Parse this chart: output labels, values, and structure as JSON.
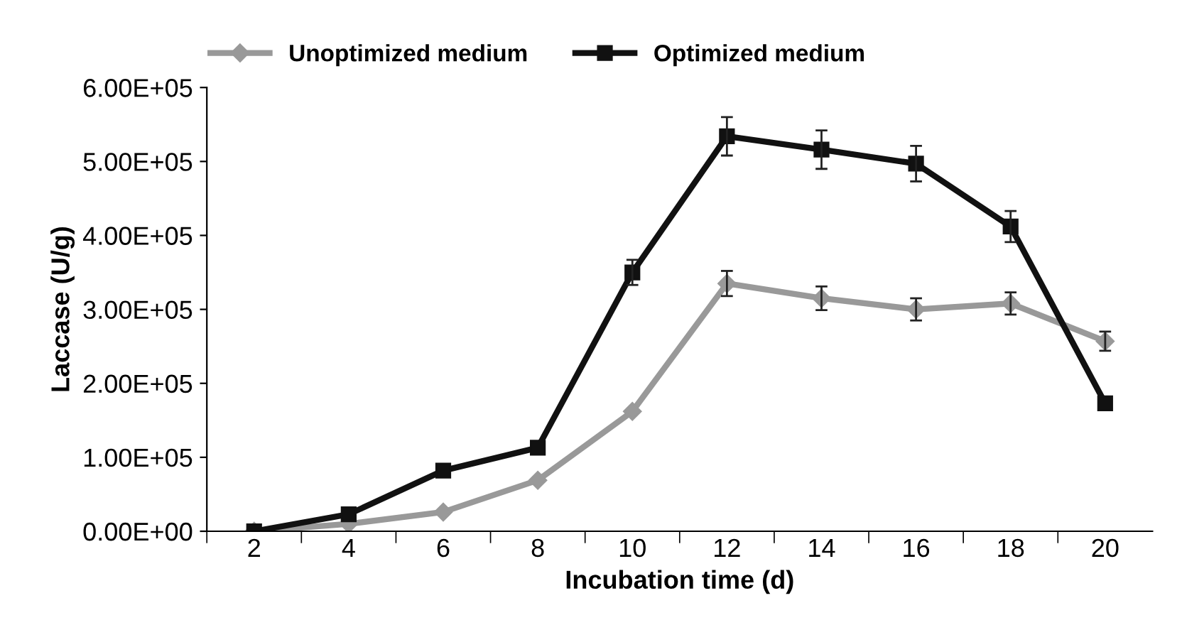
{
  "chart_data": {
    "type": "line",
    "xlabel": "Incubation time (d)",
    "ylabel": "Laccase (U/g)",
    "categories": [
      "2",
      "4",
      "6",
      "8",
      "10",
      "12",
      "14",
      "16",
      "18",
      "20"
    ],
    "series": [
      {
        "name": "Unoptimized medium",
        "color": "#999999",
        "marker": "diamond",
        "values": [
          0,
          10000,
          26000,
          69000,
          162000,
          335000,
          315000,
          300000,
          308000,
          257000
        ],
        "errors": [
          null,
          null,
          null,
          null,
          null,
          17000,
          16000,
          15000,
          15000,
          13000
        ]
      },
      {
        "name": "Optimized medium",
        "color": "#111111",
        "marker": "square",
        "values": [
          0,
          23000,
          82000,
          113000,
          350000,
          534000,
          516000,
          497000,
          412000,
          173000
        ],
        "errors": [
          null,
          null,
          null,
          null,
          17000,
          26000,
          26000,
          24000,
          21000,
          null
        ]
      }
    ],
    "ylim": [
      0,
      600000
    ],
    "yticks": [
      {
        "value": 0,
        "label": "0.00E+00"
      },
      {
        "value": 100000,
        "label": "1.00E+05"
      },
      {
        "value": 200000,
        "label": "2.00E+05"
      },
      {
        "value": 300000,
        "label": "3.00E+05"
      },
      {
        "value": 400000,
        "label": "4.00E+05"
      },
      {
        "value": 500000,
        "label": "5.00E+05"
      },
      {
        "value": 600000,
        "label": "6.00E+05"
      }
    ],
    "grid": false,
    "legend": "top",
    "line_style": "solid"
  }
}
